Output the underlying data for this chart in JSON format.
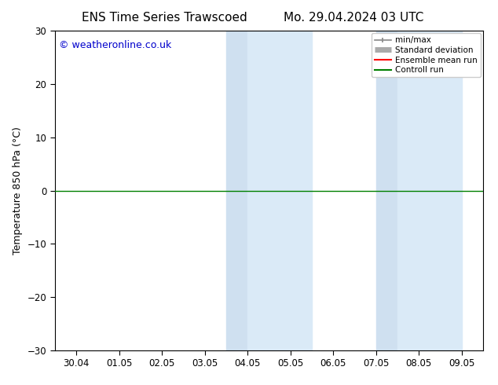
{
  "title_left": "ENS Time Series Trawscoed",
  "title_right": "Mo. 29.04.2024 03 UTC",
  "ylabel": "Temperature 850 hPa (°C)",
  "ylim": [
    -30,
    30
  ],
  "yticks": [
    -30,
    -20,
    -10,
    0,
    10,
    20,
    30
  ],
  "xtick_labels": [
    "30.04",
    "01.05",
    "02.05",
    "03.05",
    "04.05",
    "05.05",
    "06.05",
    "07.05",
    "08.05",
    "09.05"
  ],
  "copyright": "© weatheronline.co.uk",
  "shaded_bands": [
    {
      "xstart": 4.0,
      "xend": 4.5,
      "color": "#cfe0f0"
    },
    {
      "xstart": 4.5,
      "xend": 6.0,
      "color": "#daeaf7"
    },
    {
      "xstart": 7.5,
      "xend": 8.0,
      "color": "#cfe0f0"
    },
    {
      "xstart": 8.0,
      "xend": 9.5,
      "color": "#daeaf7"
    }
  ],
  "hline_y": 0,
  "hline_color": "#008000",
  "bg_color": "#ffffff",
  "plot_bg_color": "#ffffff",
  "legend_items": [
    {
      "label": "min/max",
      "color": "#888888",
      "lw": 1.2
    },
    {
      "label": "Standard deviation",
      "color": "#aaaaaa",
      "lw": 5
    },
    {
      "label": "Ensemble mean run",
      "color": "#ff0000",
      "lw": 1.5
    },
    {
      "label": "Controll run",
      "color": "#008000",
      "lw": 1.5
    }
  ],
  "title_fontsize": 11,
  "tick_fontsize": 8.5,
  "ylabel_fontsize": 9,
  "copyright_fontsize": 9,
  "copyright_color": "#0000cc",
  "figsize": [
    6.34,
    4.9
  ],
  "dpi": 100
}
